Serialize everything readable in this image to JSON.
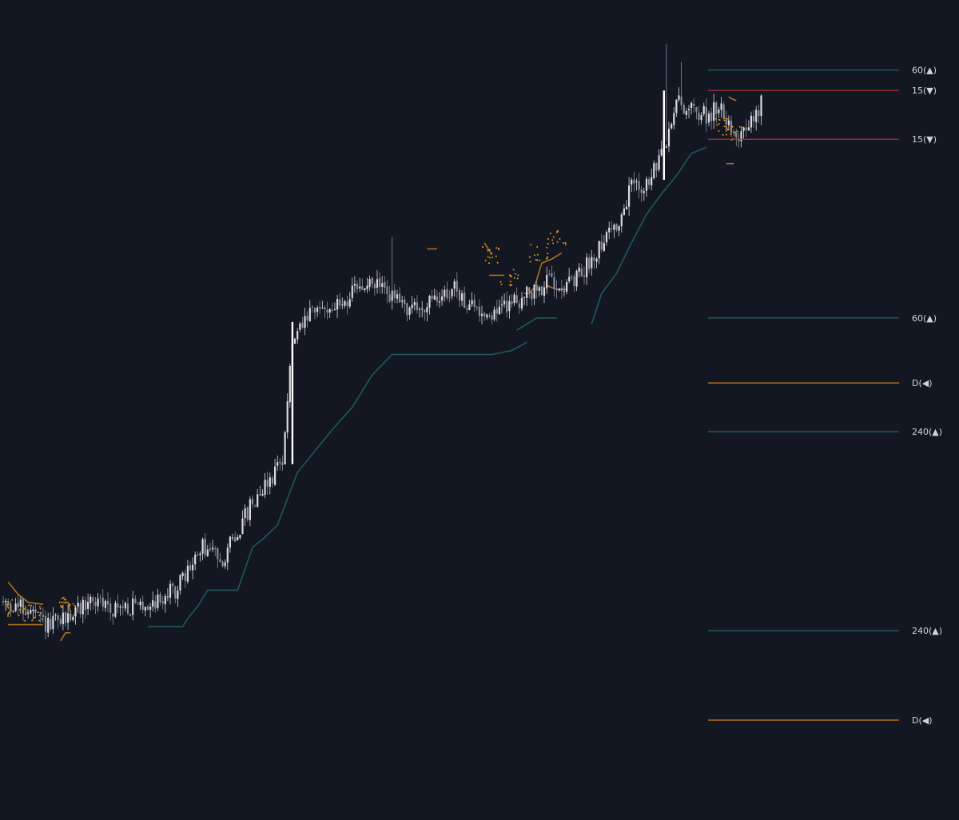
{
  "colors": {
    "background": "#131722",
    "candle": "#d9dbe0",
    "candle_dark": "#8a8e99",
    "trail_green": "#1f5a54",
    "level_green": "#1f6f64",
    "level_red": "#b33a3a",
    "level_orange": "#c8801f",
    "dot_orange": "#e6951f",
    "label_text": "#d1d4dc"
  },
  "levels": [
    {
      "label": "60(▲)",
      "price": 100.0,
      "color": "#1f6f64"
    },
    {
      "label": "15(▼)",
      "price": 99.0,
      "color": "#b33a3a"
    },
    {
      "label": "15(▼)",
      "price": 96.6,
      "color": "#b33a3a"
    },
    {
      "label": "60(▲)",
      "price": 87.8,
      "color": "#1f6f64"
    },
    {
      "label": "D(◀)",
      "price": 84.6,
      "color": "#c8801f"
    },
    {
      "label": "240(▲)",
      "price": 82.2,
      "color": "#1f6f64"
    },
    {
      "label": "240(▲)",
      "price": 72.4,
      "color": "#1f6f64"
    },
    {
      "label": "D(◀)",
      "price": 68.0,
      "color": "#c8801f"
    }
  ],
  "chart_data": {
    "type": "candlestick",
    "title": "",
    "xlabel": "",
    "ylabel": "",
    "grid": false,
    "ylim": [
      64.5,
      101.8
    ],
    "trend_anchors": [
      [
        0,
        73.8
      ],
      [
        10,
        73.4
      ],
      [
        18,
        72.6
      ],
      [
        25,
        73.0
      ],
      [
        35,
        73.9
      ],
      [
        45,
        73.5
      ],
      [
        55,
        73.6
      ],
      [
        62,
        73.9
      ],
      [
        70,
        74.5
      ],
      [
        80,
        76.5
      ],
      [
        88,
        76.0
      ],
      [
        95,
        77.5
      ],
      [
        102,
        79.2
      ],
      [
        108,
        80.0
      ],
      [
        112,
        81.0
      ],
      [
        116,
        86.5
      ],
      [
        122,
        87.8
      ],
      [
        128,
        88.3
      ],
      [
        135,
        88.4
      ],
      [
        142,
        89.2
      ],
      [
        150,
        89.5
      ],
      [
        158,
        88.6
      ],
      [
        165,
        88.2
      ],
      [
        172,
        88.5
      ],
      [
        180,
        89.3
      ],
      [
        188,
        88.3
      ],
      [
        196,
        88.0
      ],
      [
        204,
        88.6
      ],
      [
        212,
        89.0
      ],
      [
        220,
        89.7
      ],
      [
        228,
        89.4
      ],
      [
        235,
        90.5
      ],
      [
        242,
        92.0
      ],
      [
        248,
        92.5
      ],
      [
        252,
        94.5
      ],
      [
        258,
        94.3
      ],
      [
        265,
        96.0
      ],
      [
        270,
        98.5
      ],
      [
        276,
        98.0
      ],
      [
        282,
        97.8
      ],
      [
        288,
        98.2
      ],
      [
        294,
        96.8
      ],
      [
        298,
        96.9
      ],
      [
        304,
        98.3
      ]
    ],
    "trail_segments": [
      [
        [
          58,
          72.6
        ],
        [
          72,
          72.6
        ],
        [
          74,
          73.0
        ],
        [
          78,
          73.6
        ],
        [
          82,
          74.4
        ],
        [
          94,
          74.4
        ],
        [
          100,
          76.5
        ],
        [
          104,
          76.9
        ],
        [
          110,
          77.6
        ],
        [
          114,
          78.9
        ],
        [
          118,
          80.2
        ],
        [
          124,
          81.1
        ],
        [
          132,
          82.3
        ],
        [
          140,
          83.4
        ],
        [
          148,
          85.0
        ],
        [
          156,
          86.0
        ],
        [
          164,
          86.0
        ],
        [
          170,
          86.0
        ],
        [
          180,
          86.0
        ],
        [
          190,
          86.0
        ],
        [
          196,
          86.0
        ],
        [
          204,
          86.2
        ],
        [
          210,
          86.6
        ]
      ],
      [
        [
          206,
          87.2
        ],
        [
          214,
          87.8
        ],
        [
          222,
          87.8
        ]
      ],
      [
        [
          236,
          87.5
        ],
        [
          240,
          89.0
        ],
        [
          246,
          90.0
        ],
        [
          252,
          91.5
        ],
        [
          258,
          92.9
        ],
        [
          264,
          93.9
        ],
        [
          270,
          94.8
        ],
        [
          276,
          95.9
        ],
        [
          282,
          96.2
        ]
      ]
    ],
    "orange_segments": [
      [
        [
          2,
          74.8
        ],
        [
          6,
          74.2
        ],
        [
          10,
          73.8
        ],
        [
          16,
          73.7
        ]
      ],
      [
        [
          2,
          72.7
        ],
        [
          16,
          72.7
        ]
      ],
      [
        [
          23,
          73.8
        ],
        [
          26,
          73.8
        ],
        [
          27,
          73.3
        ]
      ],
      [
        [
          23,
          71.9
        ],
        [
          25,
          72.3
        ],
        [
          27,
          72.3
        ]
      ],
      [
        [
          170,
          91.2
        ],
        [
          174,
          91.2
        ]
      ],
      [
        [
          193,
          91.5
        ],
        [
          196,
          90.9
        ]
      ],
      [
        [
          195,
          89.9
        ],
        [
          201,
          89.9
        ]
      ],
      [
        [
          218,
          89.4
        ],
        [
          222,
          89.2
        ],
        [
          226,
          89.2
        ]
      ],
      [
        [
          209,
          89.0
        ],
        [
          211,
          89.0
        ],
        [
          213,
          89.3
        ],
        [
          216,
          90.5
        ],
        [
          220,
          90.7
        ],
        [
          224,
          91.0
        ]
      ],
      [
        [
          291,
          98.7
        ],
        [
          292,
          98.6
        ],
        [
          294,
          98.5
        ]
      ],
      [
        [
          290,
          95.4
        ],
        [
          293,
          95.4
        ]
      ]
    ],
    "dot_clusters": [
      [
        5,
        73.5
      ],
      [
        12,
        73.3
      ],
      [
        25,
        73.6
      ],
      [
        196,
        90.9
      ],
      [
        203,
        89.8
      ],
      [
        215,
        91.0
      ],
      [
        222,
        91.7
      ],
      [
        288,
        97.2
      ],
      [
        293,
        97.0
      ]
    ],
    "wick_spikes": [
      [
        156,
        91.8
      ],
      [
        266,
        101.3
      ],
      [
        272,
        100.4
      ]
    ]
  }
}
